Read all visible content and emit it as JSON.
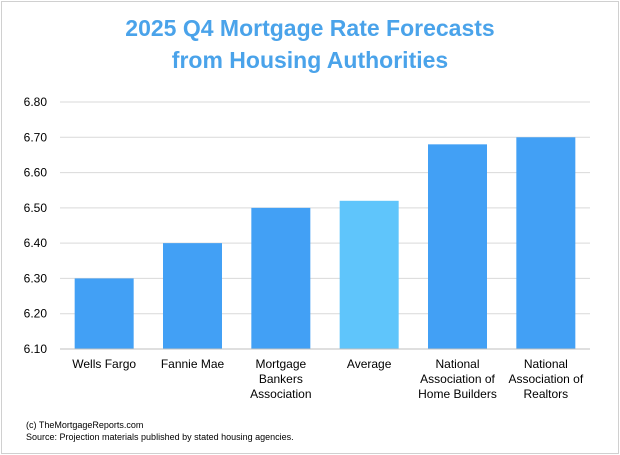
{
  "chart_data": {
    "type": "bar",
    "title": "2025 Q4 Mortgage Rate Forecasts from Housing Authorities",
    "title_lines": [
      "2025 Q4 Mortgage Rate Forecasts",
      "from Housing Authorities"
    ],
    "categories": [
      "Wells Fargo",
      "Fannie Mae",
      "Mortgage Bankers Association",
      "Average",
      "National Association of Home Builders",
      "National Association of Realtors"
    ],
    "category_lines": [
      [
        "Wells Fargo"
      ],
      [
        "Fannie Mae"
      ],
      [
        "Mortgage",
        "Bankers",
        "Association"
      ],
      [
        "Average"
      ],
      [
        "National",
        "Association of",
        "Home Builders"
      ],
      [
        "National",
        "Association of",
        "Realtors"
      ]
    ],
    "values": [
      6.3,
      6.4,
      6.5,
      6.52,
      6.68,
      6.7
    ],
    "ylim": [
      6.1,
      6.8
    ],
    "yticks": [
      "6.10",
      "6.20",
      "6.30",
      "6.40",
      "6.50",
      "6.60",
      "6.70",
      "6.80"
    ],
    "xlabel": "",
    "ylabel": "",
    "grid": true,
    "colors": {
      "bar": "#42a0f5",
      "highlight": "#5fc5fb",
      "title": "#4aa3ea",
      "grid": "#d9d9d9"
    },
    "highlight_category": "Average"
  },
  "footer": {
    "copyright": "(c) TheMortgageReports.com",
    "source": "Source: Projection materials published by stated housing agencies."
  }
}
